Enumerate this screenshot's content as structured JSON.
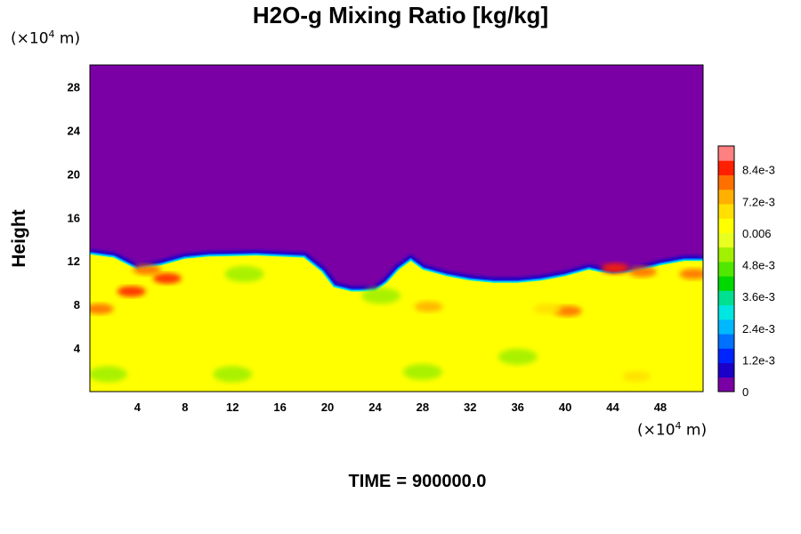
{
  "chart_data": {
    "type": "heatmap",
    "title": "H2O-g Mixing Ratio [kg/kg]",
    "ylabel": "Height",
    "y_unit": "(×10",
    "y_unit_exp": "4",
    "y_unit_tail": " m)",
    "x_unit": "(×10",
    "x_unit_exp": "4",
    "x_unit_tail": " m)",
    "xlim": [
      0,
      51.6
    ],
    "ylim": [
      0,
      30
    ],
    "x_ticks": [
      4,
      8,
      12,
      16,
      20,
      24,
      28,
      32,
      36,
      40,
      44,
      48
    ],
    "y_ticks": [
      4,
      8,
      12,
      16,
      20,
      24,
      28
    ],
    "colorbar": {
      "min": 0,
      "max": 0.0093,
      "ticks": [
        {
          "value": 0,
          "label": "0"
        },
        {
          "value": 0.0012,
          "label": "1.2e-3"
        },
        {
          "value": 0.0024,
          "label": "2.4e-3"
        },
        {
          "value": 0.0036,
          "label": "3.6e-3"
        },
        {
          "value": 0.0048,
          "label": "4.8e-3"
        },
        {
          "value": 0.006,
          "label": "0.006"
        },
        {
          "value": 0.0072,
          "label": "7.2e-3"
        },
        {
          "value": 0.0084,
          "label": "8.4e-3"
        }
      ],
      "colors": [
        "#7a00a6",
        "#1a00c8",
        "#0024ff",
        "#0070ff",
        "#00b8ff",
        "#00e6e0",
        "#00e090",
        "#00d800",
        "#50e800",
        "#a0f000",
        "#e8ff20",
        "#ffff00",
        "#ffe000",
        "#ffb000",
        "#ff7000",
        "#ff2000",
        "#ff8080"
      ]
    },
    "regions": {
      "moist_value": 0.0064,
      "dry_value": 0,
      "boundary_height": [
        [
          0,
          12.6
        ],
        [
          2,
          12.3
        ],
        [
          4,
          11.2
        ],
        [
          6,
          11.6
        ],
        [
          8,
          12.2
        ],
        [
          10,
          12.4
        ],
        [
          14,
          12.5
        ],
        [
          18,
          12.3
        ],
        [
          19.5,
          11
        ],
        [
          20.5,
          9.6
        ],
        [
          22,
          9.2
        ],
        [
          24,
          9.2
        ],
        [
          25,
          10
        ],
        [
          26,
          11.2
        ],
        [
          27,
          12
        ],
        [
          28,
          11.2
        ],
        [
          30,
          10.6
        ],
        [
          32,
          10.2
        ],
        [
          34,
          10
        ],
        [
          36,
          10
        ],
        [
          38,
          10.2
        ],
        [
          40,
          10.6
        ],
        [
          42,
          11.2
        ],
        [
          42.8,
          11
        ],
        [
          44,
          10.8
        ],
        [
          46,
          11
        ],
        [
          48,
          11.6
        ],
        [
          50,
          12
        ],
        [
          51.6,
          12
        ]
      ],
      "moist_pockets": [
        {
          "x": 3.5,
          "y": 9.2,
          "value": 0.0086
        },
        {
          "x": 6.5,
          "y": 10.4,
          "value": 0.0083
        },
        {
          "x": 0.8,
          "y": 7.6,
          "value": 0.008
        },
        {
          "x": 4.8,
          "y": 11.2,
          "value": 0.0078
        },
        {
          "x": 40.2,
          "y": 7.4,
          "value": 0.0078
        },
        {
          "x": 44.2,
          "y": 11.3,
          "value": 0.0084
        },
        {
          "x": 46.5,
          "y": 11.0,
          "value": 0.008
        },
        {
          "x": 50.8,
          "y": 10.8,
          "value": 0.0078
        },
        {
          "x": 38.5,
          "y": 7.6,
          "value": 0.007
        },
        {
          "x": 46,
          "y": 1.4,
          "value": 0.0068
        },
        {
          "x": 28.5,
          "y": 7.8,
          "value": 0.0072
        }
      ],
      "dry_pockets": [
        {
          "x": 12,
          "y": 1.6,
          "value": 0.005
        },
        {
          "x": 28,
          "y": 1.8,
          "value": 0.0052
        },
        {
          "x": 36,
          "y": 3.2,
          "value": 0.005
        },
        {
          "x": 24.5,
          "y": 8.8,
          "value": 0.005
        },
        {
          "x": 13,
          "y": 10.8,
          "value": 0.005
        },
        {
          "x": 1.5,
          "y": 1.6,
          "value": 0.0053
        }
      ]
    }
  },
  "footer": {
    "label": "TIME",
    "equals": "=",
    "value": "900000.0"
  }
}
